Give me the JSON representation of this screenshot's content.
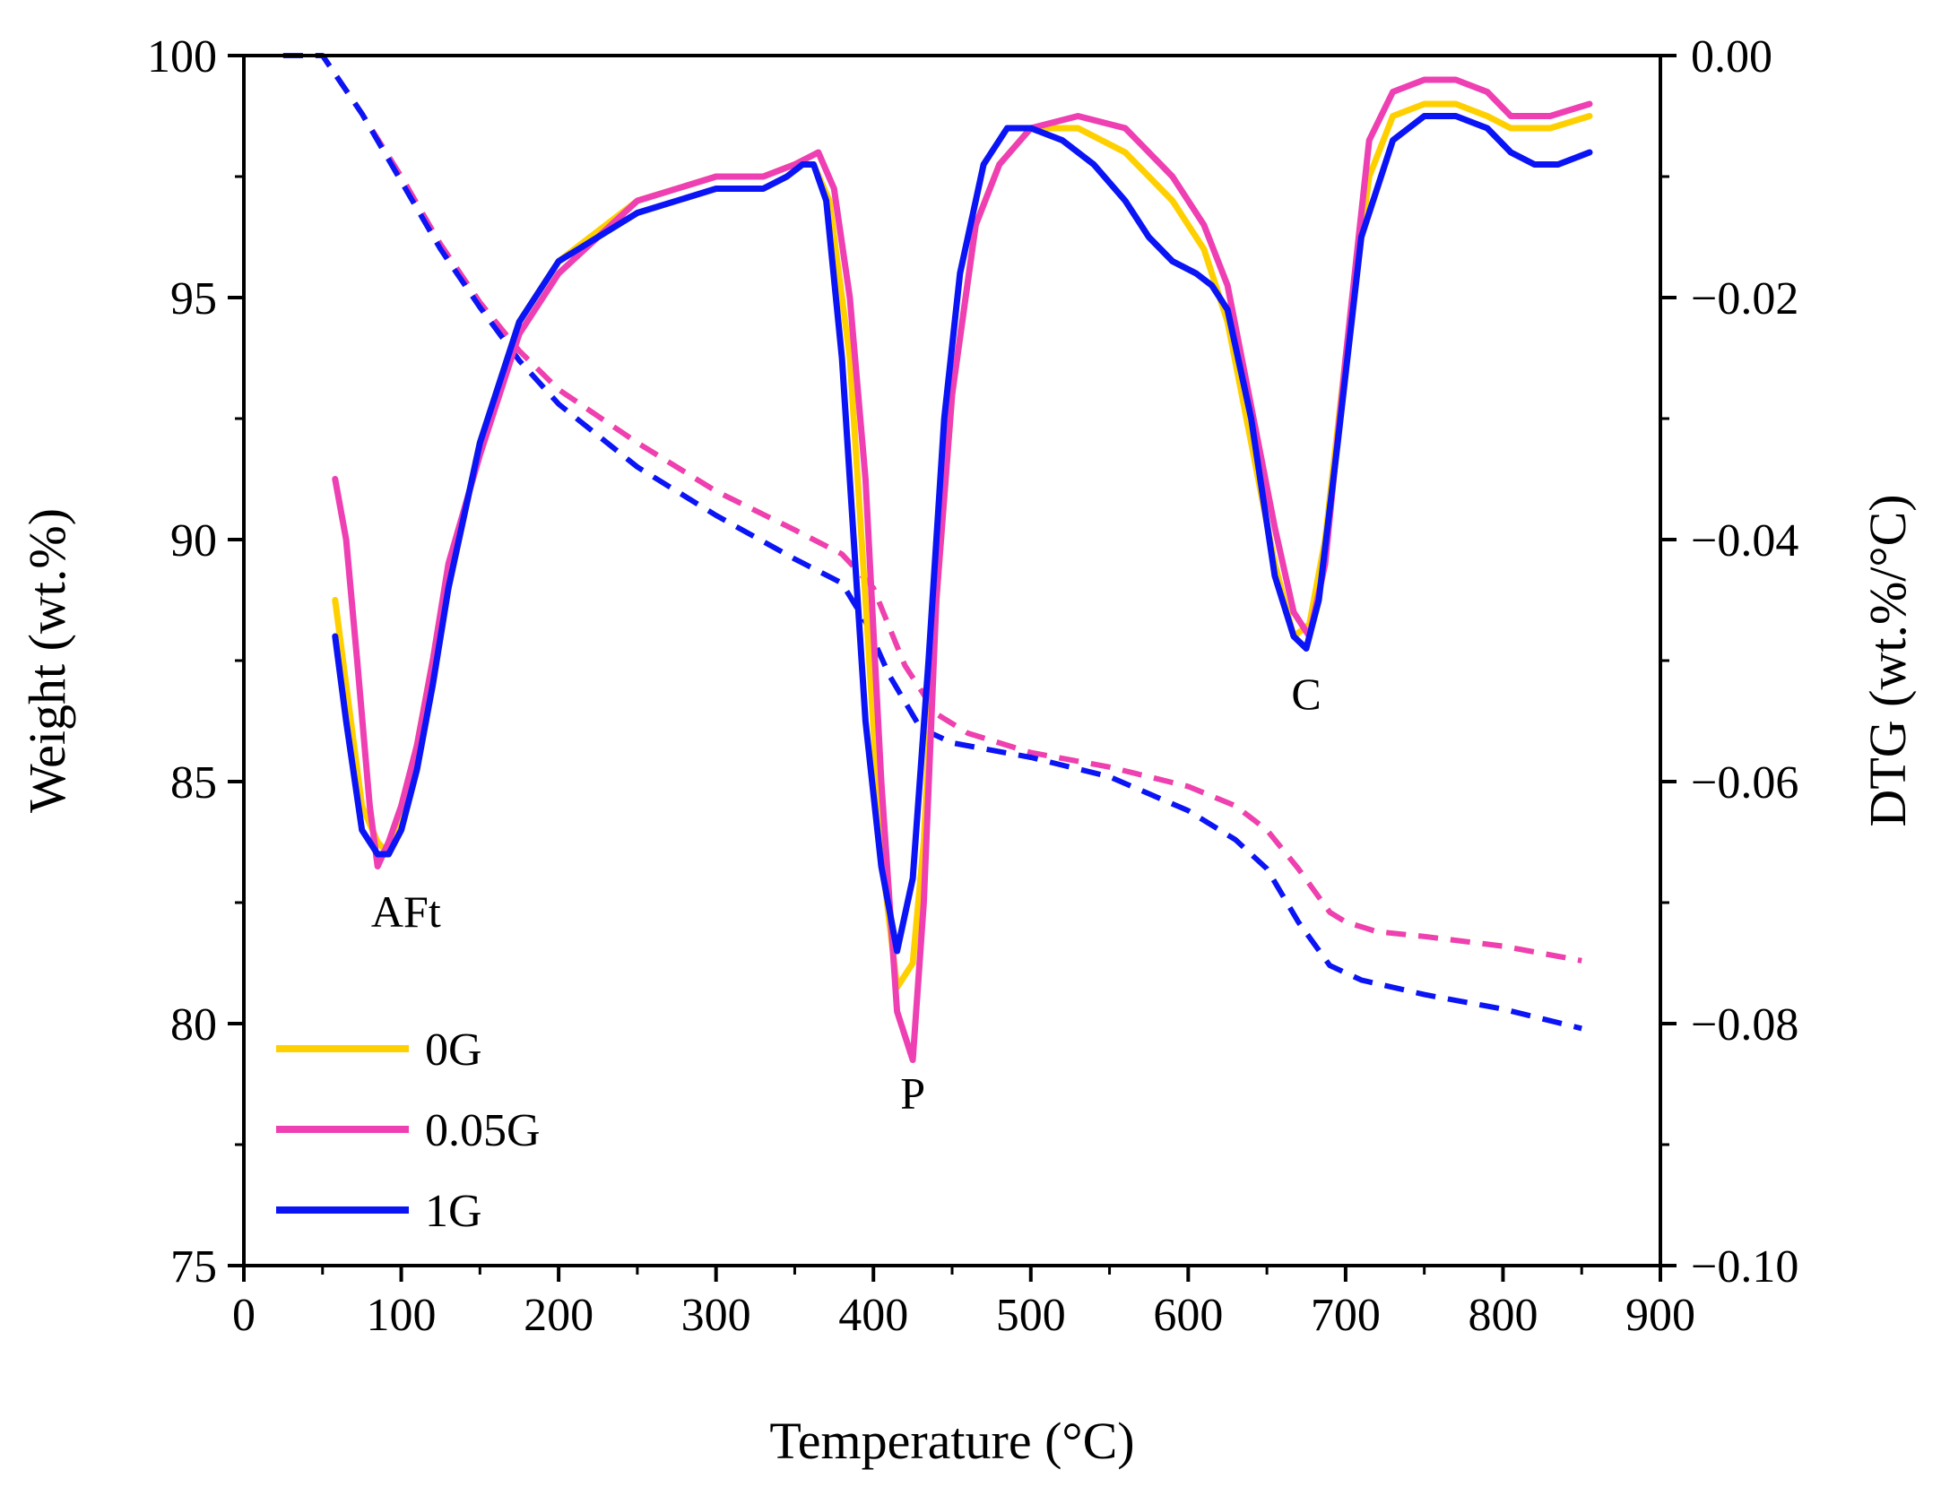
{
  "chart_data": {
    "type": "line",
    "xlabel": "Temperature (°C)",
    "ylabel_left": "Weight (wt.%)",
    "ylabel_right": "DTG (wt.%/°C)",
    "xlim": [
      0,
      900
    ],
    "ylim_left": [
      75,
      100
    ],
    "ylim_right": [
      -0.1,
      0.0
    ],
    "xticks": [
      0,
      100,
      200,
      300,
      400,
      500,
      600,
      700,
      800,
      900
    ],
    "xtick_labels": [
      "0",
      "100",
      "200",
      "300",
      "400",
      "500",
      "600",
      "700",
      "800",
      "900"
    ],
    "yticks_left": [
      75,
      80,
      85,
      90,
      95,
      100
    ],
    "ytick_labels_left": [
      "75",
      "80",
      "85",
      "90",
      "95",
      "100"
    ],
    "yticks_right": [
      -0.1,
      -0.08,
      -0.06,
      -0.04,
      -0.02,
      0.0
    ],
    "ytick_labels_right": [
      "−0.10",
      "−0.08",
      "−0.06",
      "−0.04",
      "−0.02",
      "0.00"
    ],
    "grid": false,
    "legend_position": "bottom-left",
    "annotations": [
      {
        "text": "AFt",
        "x": 103,
        "y": -0.072
      },
      {
        "text": "P",
        "x": 425,
        "y": -0.087
      },
      {
        "text": "C",
        "x": 675,
        "y": -0.054
      }
    ],
    "series": [
      {
        "name": "0G",
        "color": "#FFD000",
        "tg_x": [
          25,
          50,
          75,
          100,
          125,
          150,
          175,
          200,
          250,
          300,
          350,
          380,
          400,
          420,
          440,
          460,
          500,
          550,
          600,
          630,
          650,
          670,
          690,
          700,
          720,
          750,
          800,
          850
        ],
        "tg_y": [
          100,
          100,
          98.8,
          97.5,
          96.1,
          94.9,
          93.9,
          93.1,
          92,
          91,
          90.2,
          89.7,
          89,
          87.4,
          86.4,
          86,
          85.6,
          85.3,
          84.9,
          84.5,
          84,
          83.2,
          82.3,
          82.1,
          81.9,
          81.8,
          81.6,
          81.3
        ],
        "dtg_x": [
          58,
          65,
          75,
          85,
          92,
          100,
          110,
          120,
          130,
          150,
          175,
          200,
          250,
          300,
          330,
          350,
          362,
          372,
          385,
          395,
          405,
          415,
          425,
          432,
          440,
          450,
          465,
          480,
          500,
          530,
          560,
          590,
          610,
          625,
          640,
          655,
          667,
          677,
          687,
          700,
          715,
          730,
          750,
          770,
          790,
          805,
          830,
          855
        ],
        "dtg_y": [
          -0.045,
          -0.052,
          -0.062,
          -0.065,
          -0.066,
          -0.063,
          -0.057,
          -0.05,
          -0.044,
          -0.032,
          -0.022,
          -0.017,
          -0.012,
          -0.01,
          -0.01,
          -0.009,
          -0.009,
          -0.012,
          -0.025,
          -0.045,
          -0.066,
          -0.077,
          -0.075,
          -0.065,
          -0.045,
          -0.028,
          -0.014,
          -0.009,
          -0.006,
          -0.006,
          -0.008,
          -0.012,
          -0.016,
          -0.022,
          -0.032,
          -0.042,
          -0.048,
          -0.047,
          -0.04,
          -0.025,
          -0.01,
          -0.005,
          -0.004,
          -0.004,
          -0.005,
          -0.006,
          -0.006,
          -0.005
        ]
      },
      {
        "name": "0.05G",
        "color": "#EE3FB3",
        "tg_x": [
          25,
          50,
          75,
          100,
          125,
          150,
          175,
          200,
          250,
          300,
          350,
          380,
          400,
          420,
          440,
          460,
          500,
          550,
          600,
          630,
          650,
          670,
          690,
          700,
          720,
          750,
          800,
          850
        ],
        "tg_y": [
          100,
          100,
          98.8,
          97.5,
          96.1,
          94.9,
          93.9,
          93.1,
          92,
          91,
          90.2,
          89.7,
          89,
          87.4,
          86.4,
          86,
          85.6,
          85.3,
          84.9,
          84.5,
          84,
          83.2,
          82.3,
          82.1,
          81.9,
          81.8,
          81.6,
          81.3
        ],
        "dtg_x": [
          58,
          65,
          72,
          80,
          85,
          92,
          100,
          110,
          120,
          130,
          150,
          175,
          200,
          250,
          300,
          330,
          350,
          365,
          375,
          385,
          395,
          405,
          415,
          425,
          432,
          440,
          450,
          465,
          480,
          500,
          530,
          560,
          590,
          610,
          625,
          640,
          655,
          667,
          677,
          687,
          700,
          715,
          730,
          750,
          770,
          790,
          805,
          830,
          855
        ],
        "dtg_y": [
          -0.035,
          -0.04,
          -0.05,
          -0.062,
          -0.067,
          -0.065,
          -0.062,
          -0.057,
          -0.05,
          -0.042,
          -0.033,
          -0.023,
          -0.018,
          -0.012,
          -0.01,
          -0.01,
          -0.009,
          -0.008,
          -0.011,
          -0.02,
          -0.035,
          -0.06,
          -0.079,
          -0.083,
          -0.07,
          -0.045,
          -0.028,
          -0.014,
          -0.009,
          -0.006,
          -0.005,
          -0.006,
          -0.01,
          -0.014,
          -0.019,
          -0.029,
          -0.039,
          -0.046,
          -0.048,
          -0.042,
          -0.025,
          -0.007,
          -0.003,
          -0.002,
          -0.002,
          -0.003,
          -0.005,
          -0.005,
          -0.004
        ]
      },
      {
        "name": "1G",
        "color": "#0A14F5",
        "tg_x": [
          25,
          50,
          75,
          100,
          125,
          150,
          175,
          200,
          250,
          300,
          350,
          380,
          395,
          410,
          430,
          450,
          500,
          550,
          600,
          630,
          650,
          670,
          690,
          710,
          750,
          800,
          850
        ],
        "tg_y": [
          100,
          100,
          98.8,
          97.4,
          96,
          94.8,
          93.7,
          92.8,
          91.5,
          90.5,
          89.6,
          89.1,
          88.3,
          87.2,
          86.1,
          85.8,
          85.5,
          85.1,
          84.4,
          83.8,
          83.2,
          82.1,
          81.2,
          80.9,
          80.6,
          80.3,
          79.9
        ],
        "dtg_x": [
          58,
          65,
          75,
          85,
          92,
          100,
          110,
          120,
          130,
          150,
          175,
          200,
          250,
          300,
          330,
          345,
          355,
          362,
          370,
          380,
          395,
          405,
          415,
          425,
          435,
          445,
          455,
          470,
          485,
          500,
          520,
          540,
          560,
          575,
          590,
          605,
          615,
          625,
          640,
          655,
          667,
          675,
          683,
          695,
          710,
          730,
          750,
          770,
          790,
          805,
          820,
          835,
          855
        ],
        "dtg_y": [
          -0.048,
          -0.055,
          -0.064,
          -0.066,
          -0.066,
          -0.064,
          -0.059,
          -0.052,
          -0.044,
          -0.032,
          -0.022,
          -0.017,
          -0.013,
          -0.011,
          -0.011,
          -0.01,
          -0.009,
          -0.009,
          -0.012,
          -0.025,
          -0.055,
          -0.067,
          -0.074,
          -0.068,
          -0.05,
          -0.03,
          -0.018,
          -0.009,
          -0.006,
          -0.006,
          -0.007,
          -0.009,
          -0.012,
          -0.015,
          -0.017,
          -0.018,
          -0.019,
          -0.021,
          -0.03,
          -0.043,
          -0.048,
          -0.049,
          -0.045,
          -0.032,
          -0.015,
          -0.007,
          -0.005,
          -0.005,
          -0.006,
          -0.008,
          -0.009,
          -0.009,
          -0.008
        ]
      }
    ]
  }
}
